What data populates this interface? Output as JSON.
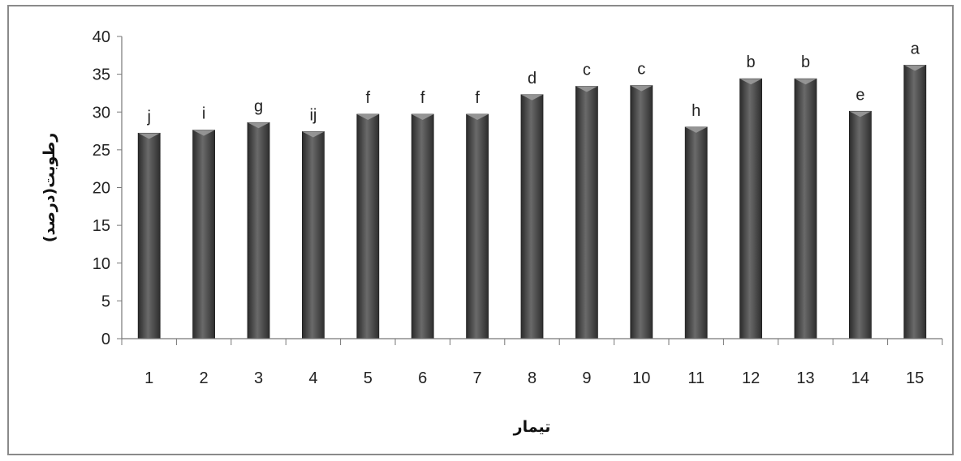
{
  "chart_data": {
    "type": "bar",
    "categories": [
      "1",
      "2",
      "3",
      "4",
      "5",
      "6",
      "7",
      "8",
      "9",
      "10",
      "11",
      "12",
      "13",
      "14",
      "15"
    ],
    "values": [
      27.2,
      27.6,
      28.6,
      27.4,
      29.7,
      29.7,
      29.7,
      32.3,
      33.4,
      33.5,
      28.0,
      34.4,
      34.4,
      30.1,
      36.2
    ],
    "letters": [
      "j",
      "i",
      "g",
      "ij",
      "f",
      "f",
      "f",
      "d",
      "c",
      "c",
      "h",
      "b",
      "b",
      "e",
      "a"
    ],
    "xlabel": "تیمار",
    "ylabel": "رطوبت(درصد)",
    "ylim": [
      0,
      40
    ],
    "yticks": [
      0,
      5,
      10,
      15,
      20,
      25,
      30,
      35,
      40
    ],
    "grid": false,
    "bar_color": "#4a4a4a"
  }
}
